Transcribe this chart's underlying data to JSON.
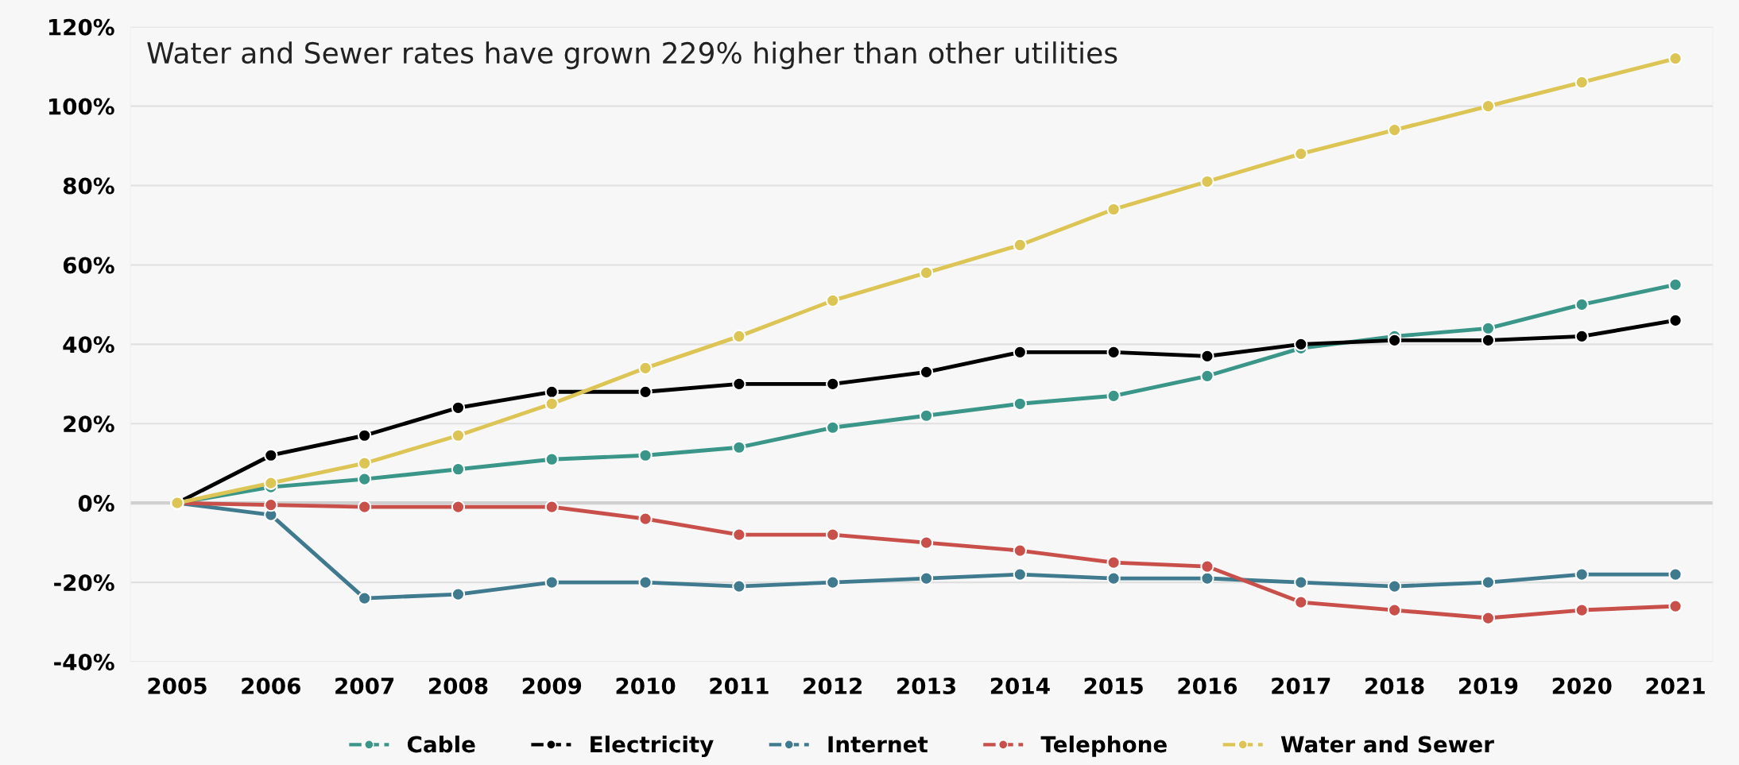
{
  "chart_data": {
    "type": "line",
    "title": "Water and Sewer rates have grown 229% higher than other utilities",
    "categories": [
      "2005",
      "2006",
      "2007",
      "2008",
      "2009",
      "2010",
      "2011",
      "2012",
      "2013",
      "2014",
      "2015",
      "2016",
      "2017",
      "2018",
      "2019",
      "2020",
      "2021"
    ],
    "series": [
      {
        "name": "Cable",
        "color": "#3a9688",
        "values": [
          0,
          4,
          6,
          8.5,
          11,
          12,
          14,
          19,
          22,
          25,
          27,
          32,
          39,
          42,
          44,
          50,
          55
        ]
      },
      {
        "name": "Electricity",
        "color": "#000000",
        "values": [
          0,
          12,
          17,
          24,
          28,
          28,
          30,
          30,
          33,
          38,
          38,
          37,
          40,
          41,
          41,
          42,
          46
        ]
      },
      {
        "name": "Internet",
        "color": "#3f7a8f",
        "values": [
          0,
          -3,
          -24,
          -23,
          -20,
          -20,
          -21,
          -20,
          -19,
          -18,
          -19,
          -19,
          -20,
          -21,
          -20,
          -18,
          -18
        ]
      },
      {
        "name": "Telephone",
        "color": "#c9504a",
        "values": [
          0,
          -0.5,
          -1,
          -1,
          -1,
          -4,
          -8,
          -8,
          -10,
          -12,
          -15,
          -16,
          -25,
          -27,
          -29,
          -27,
          -26
        ]
      },
      {
        "name": "Water and Sewer",
        "color": "#dcc555",
        "values": [
          0,
          5,
          10,
          17,
          25,
          34,
          42,
          51,
          58,
          65,
          74,
          81,
          88,
          94,
          100,
          106,
          112
        ]
      }
    ],
    "ylim": [
      -40,
      120
    ],
    "yticks": [
      {
        "value": -40,
        "label": "-40%"
      },
      {
        "value": -20,
        "label": "-20%"
      },
      {
        "value": 0,
        "label": "0%"
      },
      {
        "value": 20,
        "label": "20%"
      },
      {
        "value": 40,
        "label": "40%"
      },
      {
        "value": 60,
        "label": "60%"
      },
      {
        "value": 80,
        "label": "80%"
      },
      {
        "value": 100,
        "label": "100%"
      },
      {
        "value": 120,
        "label": "120%"
      }
    ],
    "ref_lines": [
      {
        "axis": "y",
        "value": 0,
        "color": "#d0d0d0"
      }
    ],
    "grid": "y",
    "legend": "bottom",
    "marker": "circle",
    "line_style": "solid"
  }
}
